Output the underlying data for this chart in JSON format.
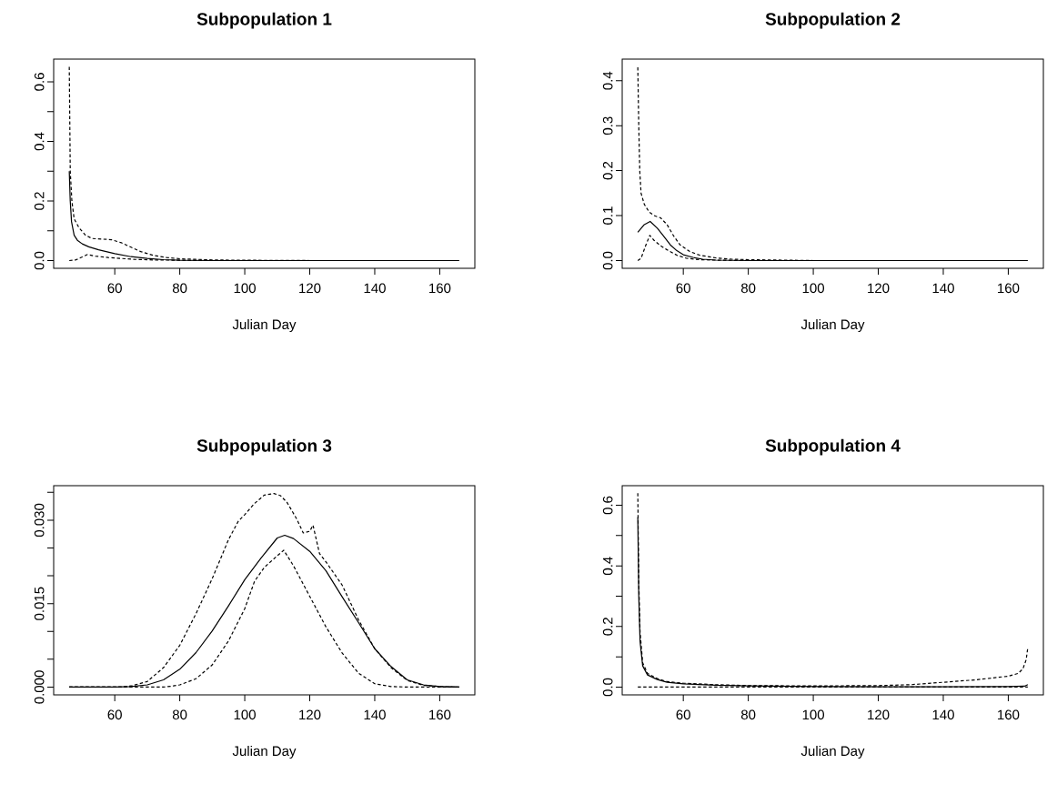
{
  "chart_data": [
    {
      "type": "line",
      "title": "Subpopulation 1",
      "xlabel": "Julian Day",
      "xlim": [
        41.2,
        170.8
      ],
      "ylim": [
        -0.026,
        0.676
      ],
      "xticks": [
        60,
        80,
        100,
        120,
        140,
        160
      ],
      "yticks": [
        {
          "value": 0,
          "label": "0.0"
        },
        {
          "value": 0.1,
          "label": null
        },
        0.2,
        {
          "value": 0.3,
          "label": null
        },
        0.4,
        {
          "value": 0.5,
          "label": null
        },
        0.6
      ],
      "series": [
        {
          "color": "#000000",
          "line_style": "solid",
          "x": [
            46,
            46.3,
            46.7,
            47.5,
            48.5,
            50,
            52,
            55,
            60,
            65,
            70,
            75,
            80,
            90,
            100,
            166
          ],
          "values": [
            0.3,
            0.2,
            0.13,
            0.085,
            0.068,
            0.056,
            0.046,
            0.036,
            0.023,
            0.013,
            0.007,
            0.003,
            0.001,
            0,
            0,
            0
          ]
        },
        {
          "color": "#000000",
          "line_style": "dashed",
          "x": [
            46,
            46.3,
            46.8,
            47.5,
            49,
            51,
            53,
            56,
            59,
            62,
            65,
            68,
            72,
            76,
            80,
            90,
            100,
            120,
            166
          ],
          "values": [
            0.65,
            0.3,
            0.2,
            0.14,
            0.11,
            0.085,
            0.074,
            0.072,
            0.07,
            0.06,
            0.045,
            0.03,
            0.017,
            0.01,
            0.006,
            0.002,
            0.001,
            0,
            0
          ]
        },
        {
          "color": "#000000",
          "line_style": "dashed",
          "x": [
            46,
            48,
            50,
            51.5,
            54,
            58,
            62,
            66,
            72,
            80,
            90,
            166
          ],
          "values": [
            0,
            0.002,
            0.012,
            0.02,
            0.015,
            0.01,
            0.007,
            0.004,
            0.002,
            0.001,
            0,
            0
          ]
        }
      ]
    },
    {
      "type": "line",
      "title": "Subpopulation 2",
      "xlabel": "Julian Day",
      "xlim": [
        41.2,
        170.8
      ],
      "ylim": [
        -0.0172,
        0.448
      ],
      "xticks": [
        60,
        80,
        100,
        120,
        140,
        160
      ],
      "yticks": [
        {
          "value": 0,
          "label": "0.0"
        },
        0.1,
        0.2,
        0.3,
        0.4
      ],
      "series": [
        {
          "color": "#000000",
          "line_style": "solid",
          "x": [
            46,
            48,
            49.8,
            52,
            54,
            56,
            58,
            60,
            63,
            66,
            70,
            80,
            166
          ],
          "values": [
            0.063,
            0.08,
            0.087,
            0.072,
            0.054,
            0.035,
            0.022,
            0.013,
            0.007,
            0.003,
            0.001,
            0,
            0
          ]
        },
        {
          "color": "#000000",
          "line_style": "dashed",
          "x": [
            46,
            46.3,
            46.6,
            47,
            48,
            49.5,
            51,
            53,
            55,
            57,
            59,
            62,
            65,
            70,
            75,
            80,
            90,
            100,
            166
          ],
          "values": [
            0.43,
            0.3,
            0.2,
            0.15,
            0.125,
            0.108,
            0.1,
            0.095,
            0.08,
            0.055,
            0.035,
            0.02,
            0.012,
            0.006,
            0.003,
            0.002,
            0.001,
            0,
            0
          ]
        },
        {
          "color": "#000000",
          "line_style": "dashed",
          "x": [
            46,
            47,
            48.5,
            49.7,
            51,
            53,
            55,
            58,
            61,
            65,
            70,
            80,
            166
          ],
          "values": [
            0,
            0.005,
            0.035,
            0.056,
            0.045,
            0.033,
            0.024,
            0.012,
            0.005,
            0.002,
            0.001,
            0,
            0
          ]
        }
      ]
    },
    {
      "type": "line",
      "title": "Subpopulation 3",
      "xlabel": "Julian Day",
      "xlim": [
        41.2,
        170.8
      ],
      "ylim": [
        -0.0014,
        0.0362
      ],
      "xticks": [
        60,
        80,
        100,
        120,
        140,
        160
      ],
      "yticks": [
        {
          "value": 0.0,
          "label": "0.000"
        },
        {
          "value": 0.005,
          "label": null
        },
        {
          "value": 0.01,
          "label": null
        },
        {
          "value": 0.015,
          "label": "0.015"
        },
        {
          "value": 0.02,
          "label": null
        },
        {
          "value": 0.025,
          "label": null
        },
        {
          "value": 0.03,
          "label": "0.030"
        },
        {
          "value": 0.035,
          "label": null
        }
      ],
      "series": [
        {
          "color": "#000000",
          "line_style": "solid",
          "x": [
            46,
            60,
            65,
            70,
            75,
            80,
            85,
            90,
            95,
            100,
            105,
            110,
            112.3,
            115,
            120,
            125,
            130,
            135,
            140,
            145,
            150,
            155,
            160,
            166
          ],
          "values": [
            0,
            0,
            0.0001,
            0.0004,
            0.0013,
            0.0032,
            0.0062,
            0.0101,
            0.0146,
            0.0193,
            0.0232,
            0.0268,
            0.0273,
            0.0267,
            0.0244,
            0.0209,
            0.0162,
            0.0116,
            0.0069,
            0.0037,
            0.0013,
            0.0004,
            0.0001,
            0
          ]
        },
        {
          "color": "#000000",
          "line_style": "dashed",
          "x": [
            46,
            62,
            65,
            70,
            75,
            80,
            85,
            90,
            95,
            98,
            100,
            103,
            106,
            109,
            111,
            113,
            116,
            118,
            120,
            121,
            123,
            125,
            130,
            135,
            140,
            145,
            150,
            155,
            160,
            166
          ],
          "values": [
            0,
            0,
            0.0002,
            0.001,
            0.0035,
            0.0075,
            0.0132,
            0.0195,
            0.0265,
            0.0298,
            0.031,
            0.033,
            0.0345,
            0.0348,
            0.0344,
            0.0332,
            0.0302,
            0.0277,
            0.028,
            0.0291,
            0.024,
            0.0225,
            0.0183,
            0.0121,
            0.0069,
            0.0035,
            0.0012,
            0.0003,
            0.0001,
            0
          ]
        },
        {
          "color": "#000000",
          "line_style": "dashed",
          "x": [
            46,
            75,
            78,
            80,
            85,
            90,
            95,
            100,
            103,
            106,
            110,
            112,
            115,
            120,
            125,
            130,
            135,
            140,
            145,
            150,
            166
          ],
          "values": [
            0,
            0,
            0.0002,
            0.0004,
            0.0015,
            0.004,
            0.0083,
            0.0141,
            0.019,
            0.0215,
            0.0236,
            0.0246,
            0.0218,
            0.0163,
            0.0108,
            0.0061,
            0.0025,
            0.0006,
            0.0001,
            0,
            0
          ]
        }
      ]
    },
    {
      "type": "line",
      "title": "Subpopulation 4",
      "xlabel": "Julian Day",
      "xlim": [
        41.2,
        170.8
      ],
      "ylim": [
        -0.0256,
        0.6646
      ],
      "xticks": [
        60,
        80,
        100,
        120,
        140,
        160
      ],
      "yticks": [
        {
          "value": 0,
          "label": "0.0"
        },
        {
          "value": 0.1,
          "label": null
        },
        0.2,
        {
          "value": 0.3,
          "label": null
        },
        0.4,
        {
          "value": 0.5,
          "label": null
        },
        0.6
      ],
      "series": [
        {
          "color": "#000000",
          "line_style": "solid",
          "x": [
            46,
            46.3,
            46.7,
            47.5,
            49,
            52,
            55,
            60,
            70,
            80,
            100,
            120,
            140,
            160,
            165,
            166
          ],
          "values": [
            0.56,
            0.3,
            0.15,
            0.07,
            0.04,
            0.025,
            0.016,
            0.011,
            0.006,
            0.004,
            0.002,
            0.001,
            0.001,
            0.002,
            0.003,
            0.008
          ]
        },
        {
          "color": "#000000",
          "line_style": "dashed",
          "x": [
            46,
            46.3,
            46.7,
            47.5,
            49,
            52,
            55,
            60,
            70,
            80,
            100,
            120,
            130,
            140,
            150,
            160,
            163,
            164.5,
            165.5,
            166
          ],
          "values": [
            0.64,
            0.35,
            0.18,
            0.08,
            0.045,
            0.028,
            0.018,
            0.013,
            0.008,
            0.005,
            0.004,
            0.005,
            0.008,
            0.016,
            0.024,
            0.036,
            0.045,
            0.06,
            0.09,
            0.13
          ]
        },
        {
          "color": "#000000",
          "line_style": "dashed",
          "x": [
            46,
            166
          ],
          "values": [
            0,
            0
          ]
        }
      ]
    }
  ]
}
